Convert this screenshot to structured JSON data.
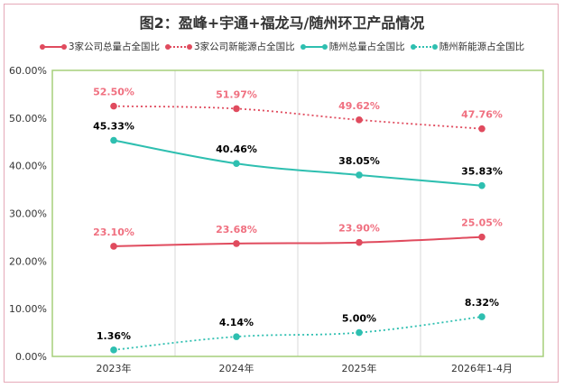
{
  "chart_data": {
    "type": "line",
    "title": "图2：盈峰+宇通+福龙马/随州环卫产品情况",
    "categories": [
      "2023年",
      "2024年",
      "2025年",
      "2026年1-4月"
    ],
    "ylim": [
      0,
      60
    ],
    "yticks": [
      "0.00%",
      "10.00%",
      "20.00%",
      "30.00%",
      "40.00%",
      "50.00%",
      "60.00%"
    ],
    "legend_position": "top",
    "grid": "vertical",
    "series": [
      {
        "name": "3家公司总量占全国比",
        "values": [
          23.1,
          23.68,
          23.9,
          25.05
        ],
        "labels": [
          "23.10%",
          "23.68%",
          "23.90%",
          "25.05%"
        ],
        "color": "#e04b5e",
        "style": "solid",
        "label_color": "#f07080"
      },
      {
        "name": "3家公司新能源占全国比",
        "values": [
          52.5,
          51.97,
          49.62,
          47.76
        ],
        "labels": [
          "52.50%",
          "51.97%",
          "49.62%",
          "47.76%"
        ],
        "color": "#e04b5e",
        "style": "dotted",
        "label_color": "#f07080"
      },
      {
        "name": "随州总量占全国比",
        "values": [
          45.33,
          40.46,
          38.05,
          35.83
        ],
        "labels": [
          "45.33%",
          "40.46%",
          "38.05%",
          "35.83%"
        ],
        "color": "#2ebfb0",
        "style": "solid",
        "label_color": "#000000"
      },
      {
        "name": "随州新能源占全国比",
        "values": [
          1.36,
          4.14,
          5.0,
          8.32
        ],
        "labels": [
          "1.36%",
          "4.14%",
          "5.00%",
          "8.32%"
        ],
        "color": "#2ebfb0",
        "style": "dotted",
        "label_color": "#000000"
      }
    ],
    "colors": {
      "plot_border": "#a6cf7a",
      "grid": "#d9d9d9",
      "frame": "#e6a9b8"
    }
  }
}
